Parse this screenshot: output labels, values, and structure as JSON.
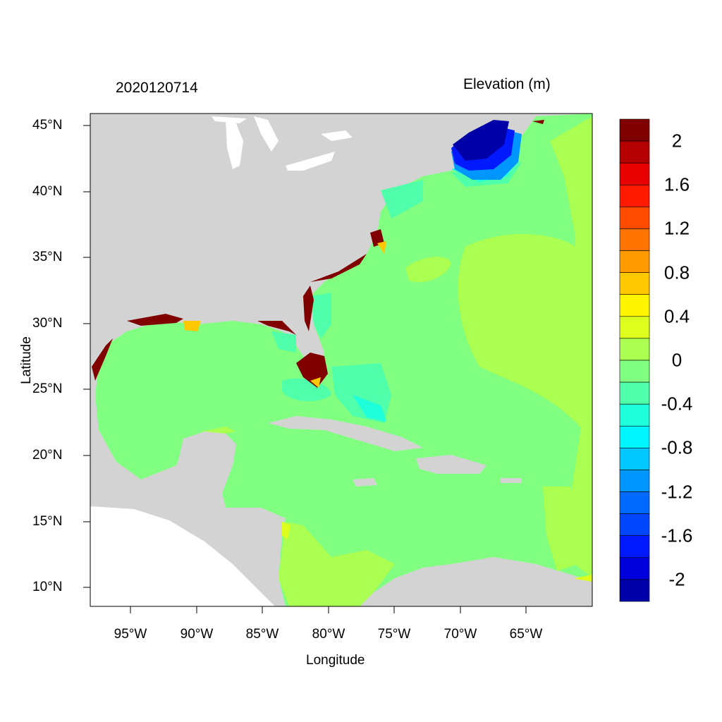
{
  "title_left": "2020120714",
  "title_right": "Elevation (m)",
  "xlabel": "Longitude",
  "ylabel": "Latitude",
  "x_ticks": [
    "95°W",
    "90°W",
    "85°W",
    "80°W",
    "75°W",
    "70°W",
    "65°W"
  ],
  "y_ticks": [
    "45°N",
    "40°N",
    "35°N",
    "30°N",
    "25°N",
    "20°N",
    "15°N",
    "10°N"
  ],
  "colorbar": {
    "labels": [
      "2",
      "1.6",
      "1.2",
      "0.8",
      "0.4",
      "0",
      "-0.4",
      "-0.8",
      "-1.2",
      "-1.6",
      "-2"
    ],
    "colors": [
      "#800000",
      "#b40000",
      "#e60000",
      "#ff1a00",
      "#ff4b00",
      "#ff7300",
      "#ff9b00",
      "#ffc800",
      "#fff500",
      "#dcff1e",
      "#aaff50",
      "#80ff80",
      "#50ffaa",
      "#1effdc",
      "#00f5ff",
      "#00c8ff",
      "#0096ff",
      "#0069ff",
      "#0046ff",
      "#0019ff",
      "#0000dc",
      "#0000a8"
    ]
  },
  "colors": {
    "land": "#d3d3d3",
    "outside": "#ffffff",
    "ocean": "#80ff80"
  }
}
